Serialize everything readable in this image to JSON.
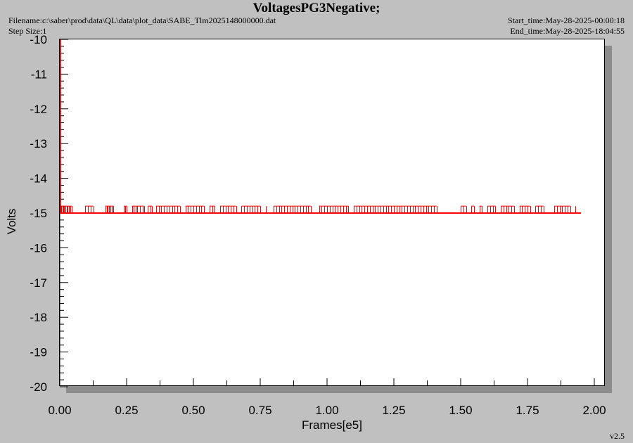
{
  "header": {
    "title": "VoltagesPG3Negative;",
    "filename": "Filename:c:\\saber\\prod\\data\\QL\\data\\plot_data\\SABE_Tlm2025148000000.dat",
    "step_size": "Step Size:1",
    "start_time": "Start_time:May-28-2025-00:00:18",
    "end_time": "End_time:May-28-2025-18:04:55"
  },
  "footer": {
    "version": "v2.5"
  },
  "chart_data": {
    "type": "line",
    "title": "VoltagesPG3Negative;",
    "xlabel": "Frames[e5]",
    "ylabel": "Volts",
    "xlim": [
      0.0,
      2.05
    ],
    "ylim": [
      -20,
      -10
    ],
    "x_ticks": [
      "0.00",
      "0.25",
      "0.50",
      "0.75",
      "1.00",
      "1.25",
      "1.50",
      "1.75",
      "2.00"
    ],
    "y_ticks": [
      "-10",
      "-11",
      "-12",
      "-13",
      "-14",
      "-15",
      "-16",
      "-17",
      "-18",
      "-19",
      "-20"
    ],
    "grid": false,
    "color": "#ff0000",
    "series": [
      {
        "baseline": -15.0,
        "spike_level": -14.8,
        "x_range": [
          0.0,
          1.95
        ],
        "initial_drop": {
          "x": 0.0,
          "from": -10.0,
          "to": -15.0
        },
        "spike_x": [
          0.002,
          0.005,
          0.01,
          0.013,
          0.016,
          0.02,
          0.025,
          0.03,
          0.035,
          0.04,
          0.045,
          0.095,
          0.105,
          0.115,
          0.125,
          0.17,
          0.175,
          0.18,
          0.185,
          0.19,
          0.195,
          0.2,
          0.24,
          0.245,
          0.25,
          0.27,
          0.275,
          0.285,
          0.29,
          0.3,
          0.31,
          0.315,
          0.33,
          0.34,
          0.345,
          0.36,
          0.37,
          0.38,
          0.39,
          0.4,
          0.41,
          0.42,
          0.43,
          0.44,
          0.45,
          0.47,
          0.48,
          0.49,
          0.5,
          0.51,
          0.52,
          0.53,
          0.54,
          0.56,
          0.57,
          0.58,
          0.6,
          0.61,
          0.62,
          0.63,
          0.64,
          0.65,
          0.66,
          0.68,
          0.69,
          0.7,
          0.71,
          0.72,
          0.73,
          0.74,
          0.75,
          0.77,
          0.8,
          0.81,
          0.82,
          0.83,
          0.84,
          0.85,
          0.86,
          0.87,
          0.88,
          0.89,
          0.9,
          0.91,
          0.92,
          0.93,
          0.94,
          0.97,
          0.98,
          0.99,
          1.0,
          1.01,
          1.02,
          1.03,
          1.04,
          1.05,
          1.06,
          1.07,
          1.08,
          1.1,
          1.11,
          1.12,
          1.13,
          1.14,
          1.15,
          1.16,
          1.17,
          1.18,
          1.19,
          1.2,
          1.21,
          1.22,
          1.23,
          1.24,
          1.25,
          1.26,
          1.27,
          1.28,
          1.29,
          1.3,
          1.31,
          1.32,
          1.33,
          1.34,
          1.35,
          1.36,
          1.37,
          1.38,
          1.39,
          1.4,
          1.41,
          1.5,
          1.51,
          1.52,
          1.54,
          1.55,
          1.57,
          1.58,
          1.6,
          1.61,
          1.62,
          1.63,
          1.65,
          1.66,
          1.67,
          1.68,
          1.69,
          1.7,
          1.72,
          1.73,
          1.74,
          1.75,
          1.76,
          1.78,
          1.79,
          1.8,
          1.81,
          1.85,
          1.86,
          1.87,
          1.88,
          1.89,
          1.9,
          1.91,
          1.93
        ]
      }
    ]
  }
}
